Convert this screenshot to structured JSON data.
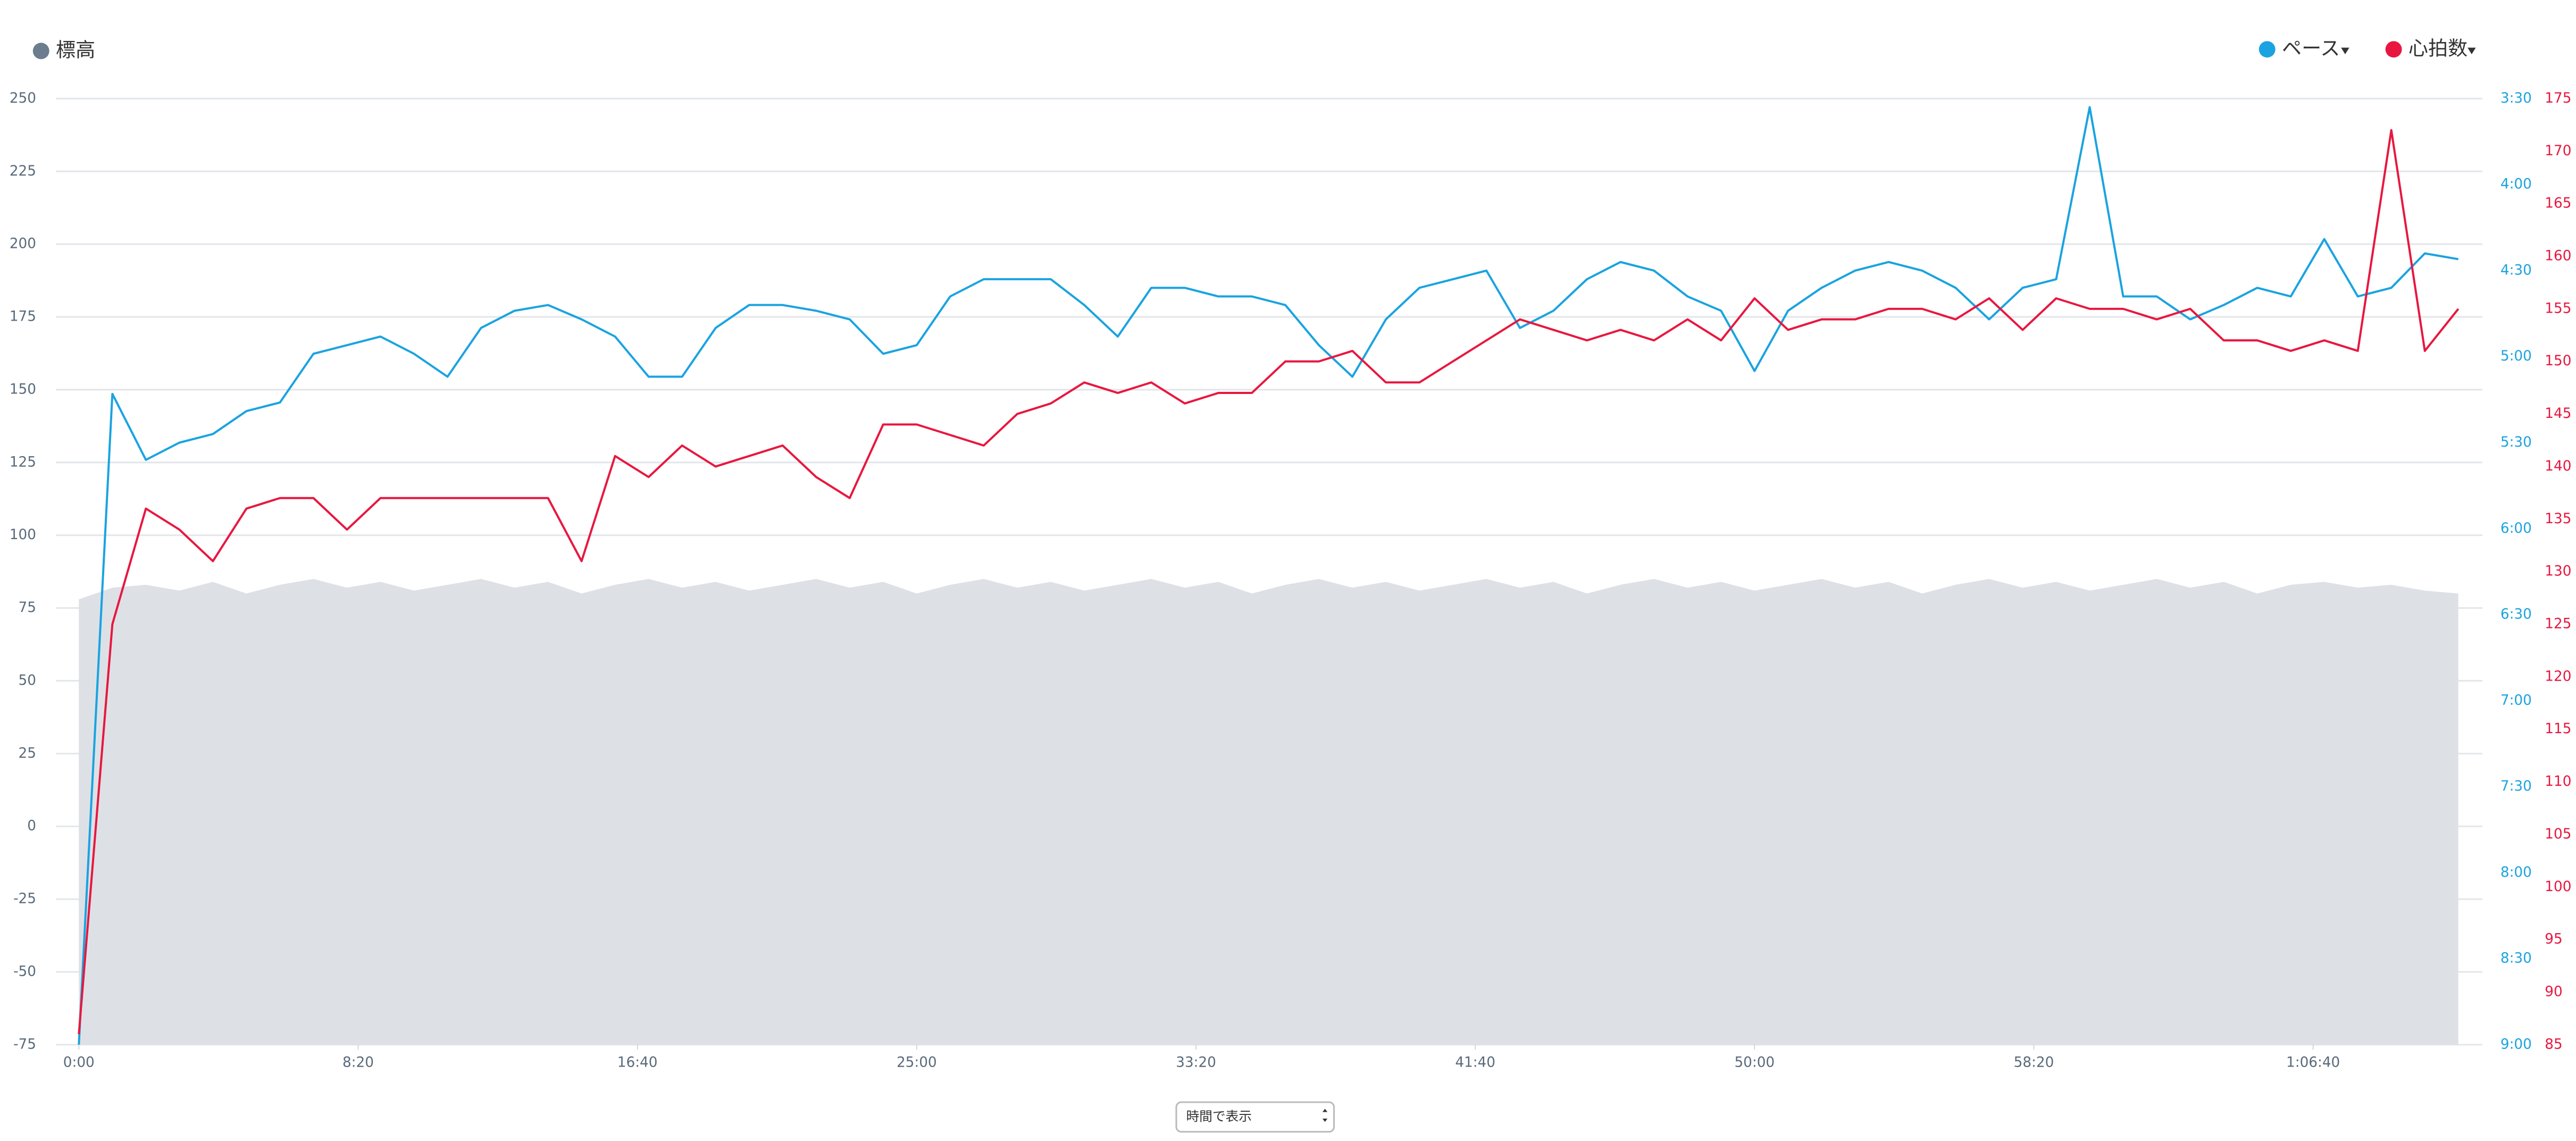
{
  "chart_data": {
    "type": "line",
    "xlim": [
      0,
      4303
    ],
    "xticks": [
      {
        "value": 0,
        "label": "0:00"
      },
      {
        "value": 500,
        "label": "8:20"
      },
      {
        "value": 1000,
        "label": "16:40"
      },
      {
        "value": 1500,
        "label": "25:00"
      },
      {
        "value": 2000,
        "label": "33:20"
      },
      {
        "value": 2500,
        "label": "41:40"
      },
      {
        "value": 3000,
        "label": "50:00"
      },
      {
        "value": 3500,
        "label": "58:20"
      },
      {
        "value": 4000,
        "label": "1:06:40"
      }
    ],
    "ylim": [
      -75,
      250
    ],
    "yticks": [
      -75,
      -50,
      -25,
      0,
      25,
      50,
      75,
      100,
      125,
      150,
      175,
      200,
      225,
      250
    ],
    "y2lim": [
      540,
      210
    ],
    "y2ticks": [
      {
        "value": 210,
        "label": "3:30"
      },
      {
        "value": 240,
        "label": "4:00"
      },
      {
        "value": 270,
        "label": "4:30"
      },
      {
        "value": 300,
        "label": "5:00"
      },
      {
        "value": 330,
        "label": "5:30"
      },
      {
        "value": 360,
        "label": "6:00"
      },
      {
        "value": 390,
        "label": "6:30"
      },
      {
        "value": 420,
        "label": "7:00"
      },
      {
        "value": 450,
        "label": "7:30"
      },
      {
        "value": 480,
        "label": "8:00"
      },
      {
        "value": 510,
        "label": "8:30"
      },
      {
        "value": 540,
        "label": "9:00"
      }
    ],
    "y3lim": [
      85,
      175
    ],
    "y3ticks": [
      85,
      90,
      95,
      100,
      105,
      110,
      115,
      120,
      125,
      130,
      135,
      140,
      145,
      150,
      155,
      160,
      165,
      170,
      175
    ],
    "grid": true,
    "x": [
      0,
      60,
      120,
      180,
      240,
      300,
      360,
      420,
      480,
      540,
      600,
      660,
      720,
      780,
      840,
      900,
      960,
      1020,
      1080,
      1140,
      1200,
      1260,
      1320,
      1380,
      1440,
      1500,
      1560,
      1620,
      1680,
      1740,
      1800,
      1860,
      1920,
      1980,
      2040,
      2100,
      2160,
      2220,
      2280,
      2340,
      2400,
      2460,
      2520,
      2580,
      2640,
      2700,
      2760,
      2820,
      2880,
      2940,
      3000,
      3060,
      3120,
      3180,
      3240,
      3300,
      3360,
      3420,
      3480,
      3540,
      3600,
      3660,
      3720,
      3780,
      3840,
      3900,
      3960,
      4020,
      4080,
      4140,
      4200,
      4260
    ],
    "series": [
      {
        "name": "標高",
        "color": "#dde1e6",
        "legend_color": "#6b7d8f",
        "axis": "y",
        "area": true,
        "values": [
          78,
          82,
          83,
          81,
          84,
          80,
          83,
          85,
          82,
          84,
          81,
          83,
          85,
          82,
          84,
          80,
          83,
          85,
          82,
          84,
          81,
          83,
          85,
          82,
          84,
          80,
          83,
          85,
          82,
          84,
          81,
          83,
          85,
          82,
          84,
          80,
          83,
          85,
          82,
          84,
          81,
          83,
          85,
          82,
          84,
          80,
          83,
          85,
          82,
          84,
          81,
          83,
          85,
          82,
          84,
          80,
          83,
          85,
          82,
          84,
          81,
          83,
          85,
          82,
          84,
          80,
          83,
          84,
          82,
          83,
          81,
          80
        ]
      },
      {
        "name": "ペース",
        "color": "#1aa3e0",
        "axis": "y2",
        "values": [
          540,
          313,
          336,
          330,
          327,
          319,
          316,
          299,
          296,
          293,
          299,
          307,
          290,
          284,
          282,
          287,
          293,
          307,
          307,
          290,
          282,
          282,
          284,
          287,
          299,
          296,
          279,
          273,
          273,
          273,
          282,
          293,
          276,
          276,
          279,
          279,
          282,
          296,
          307,
          287,
          276,
          273,
          270,
          290,
          284,
          273,
          267,
          270,
          279,
          284,
          305,
          284,
          276,
          270,
          267,
          270,
          276,
          287,
          276,
          273,
          213,
          279,
          279,
          287,
          282,
          276,
          279,
          259,
          279,
          276,
          264,
          266
        ]
      },
      {
        "name": "心拍数",
        "color": "#e8173f",
        "axis": "y3",
        "values": [
          86,
          125,
          136,
          134,
          131,
          136,
          137,
          137,
          134,
          137,
          137,
          137,
          137,
          137,
          137,
          131,
          141,
          139,
          142,
          140,
          141,
          142,
          139,
          137,
          144,
          144,
          143,
          142,
          145,
          146,
          148,
          147,
          148,
          146,
          147,
          147,
          150,
          150,
          151,
          148,
          148,
          150,
          152,
          154,
          153,
          152,
          153,
          152,
          154,
          152,
          156,
          153,
          154,
          154,
          155,
          155,
          154,
          156,
          153,
          156,
          155,
          155,
          154,
          155,
          152,
          152,
          151,
          152,
          151,
          172,
          151,
          155
        ]
      }
    ]
  },
  "view_select": "時間で表示"
}
